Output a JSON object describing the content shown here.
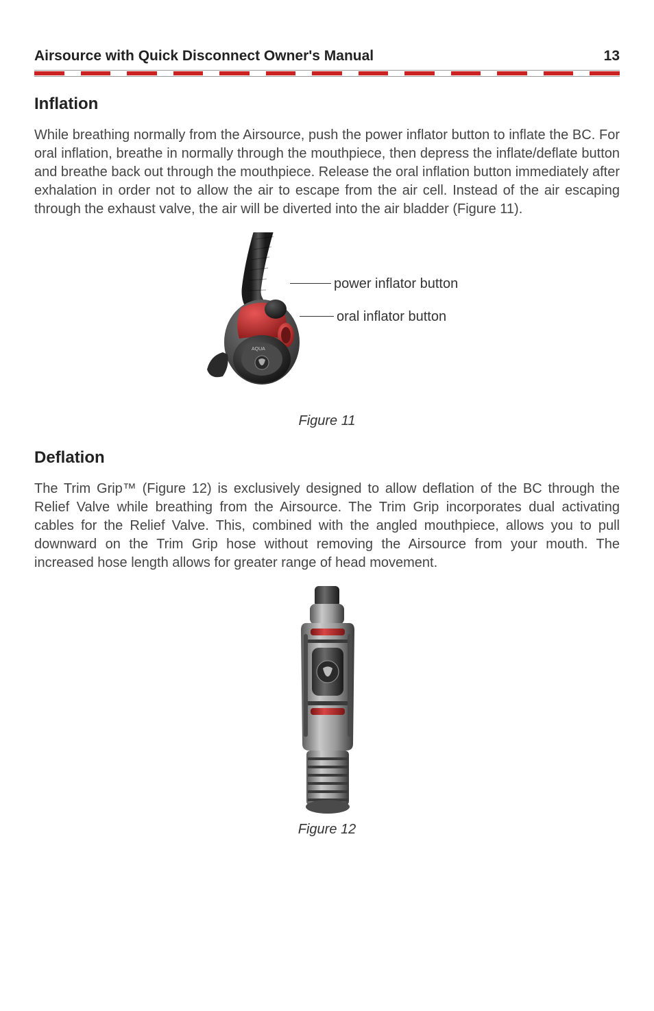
{
  "header": {
    "title": "Airsource with Quick Disconnect Owner's Manual",
    "page_number": "13"
  },
  "divider": {
    "dash_color": "#cc2222",
    "bg": "#ffffff",
    "dash_count": 13
  },
  "section_inflation": {
    "heading": "Inflation",
    "paragraph": "While breathing normally from the Airsource, push the power inflator button to inflate the BC. For oral inflation, breathe in normally through the mouthpiece, then depress the inflate/deflate button and breathe back out through the mouthpiece. Release the oral inflation button immediately after exhalation in order not to allow the air to escape from the air cell. Instead of the air escaping through the exhaust valve, the air will be diverted into the air bladder (Figure 11)."
  },
  "figure11": {
    "caption": "Figure 11",
    "callout1": "power inflator button",
    "callout2": "oral inflator button",
    "colors": {
      "hose": "#2b2b2b",
      "body_dark": "#3a3a3a",
      "body_light": "#6a6a6a",
      "red_button": "#b82a2a",
      "red_highlight": "#d84545",
      "metal": "#888888"
    }
  },
  "section_deflation": {
    "heading": "Deflation",
    "paragraph": "The Trim Grip™ (Figure 12) is exclusively designed to allow deflation of the BC through the Relief Valve while breathing from the Airsource. The Trim Grip incorporates dual activating cables for the Relief Valve. This, combined with the angled mouthpiece, allows you to pull downward on the Trim Grip hose without removing the Airsource from your mouth. The increased hose length allows for greater range of head movement."
  },
  "figure12": {
    "caption": "Figure 12",
    "colors": {
      "grip_light": "#a8a8a8",
      "grip_mid": "#8a8a8a",
      "grip_dark": "#5a5a5a",
      "grip_shadow": "#3a3a3a",
      "red_accent": "#b82a2a",
      "hose": "#2b2b2b"
    }
  }
}
